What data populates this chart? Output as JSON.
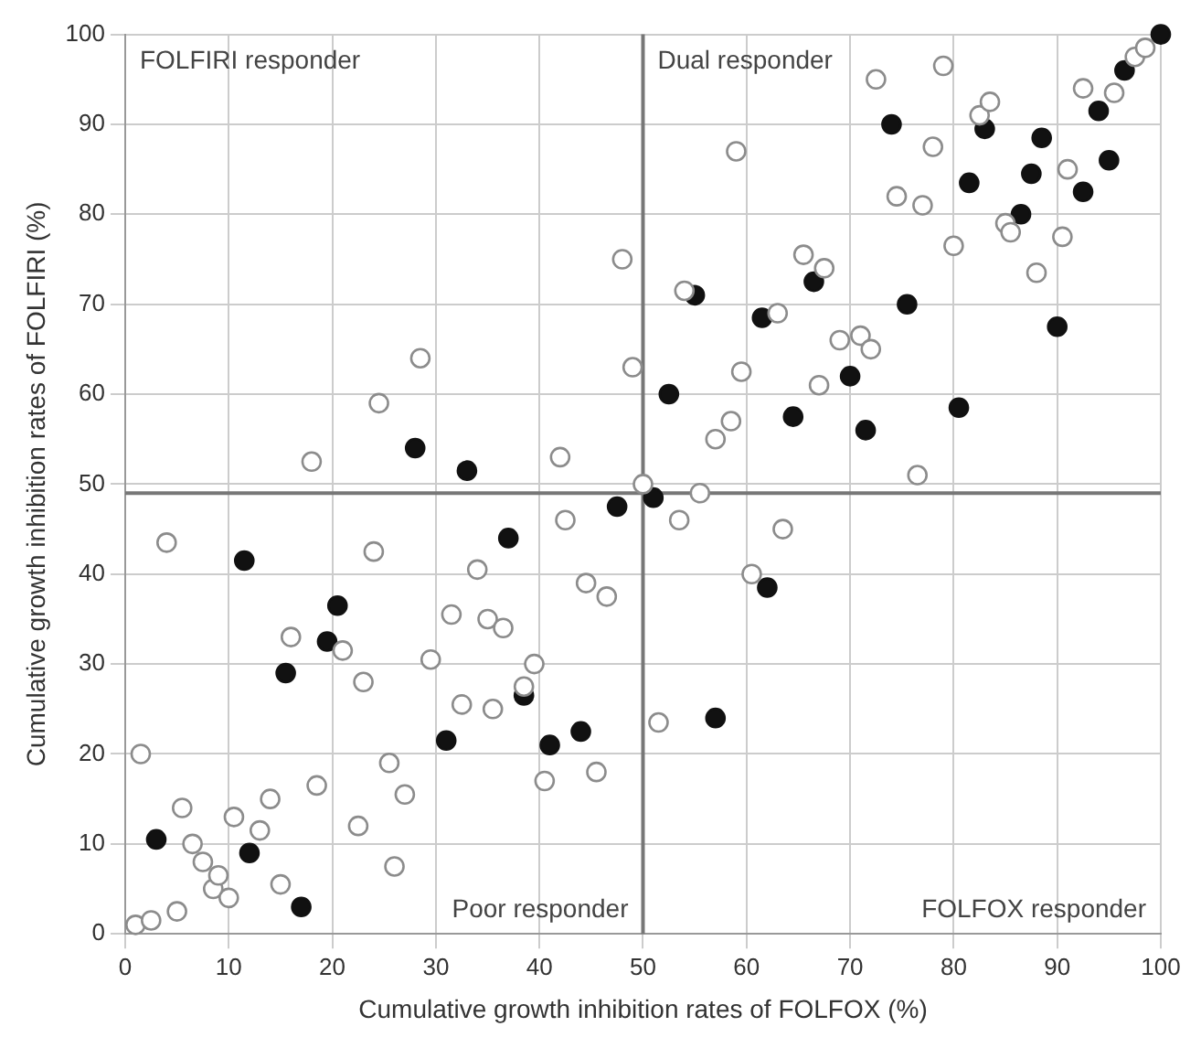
{
  "chart_data": {
    "type": "scatter",
    "xlabel": "Cumulative growth inhibition rates of FOLFOX (%)",
    "ylabel": "Cumulative growth inhibition rates of FOLFIRI (%)",
    "xlim": [
      0,
      100
    ],
    "ylim": [
      0,
      100
    ],
    "xticks": [
      0,
      10,
      20,
      30,
      40,
      50,
      60,
      70,
      80,
      90,
      100
    ],
    "yticks": [
      0,
      10,
      20,
      30,
      40,
      50,
      60,
      70,
      80,
      90,
      100
    ],
    "grid": true,
    "legend": false,
    "series": [
      {
        "color": "#8c8c8c",
        "x": [
          1,
          2.5,
          5,
          1.5,
          4,
          5.5,
          6.5,
          7.5,
          8.5,
          9,
          10,
          10.5,
          13,
          14,
          15,
          16,
          18.5,
          18,
          21,
          22.5,
          23,
          24,
          24.5,
          25.5,
          26,
          27,
          28.5,
          29.5,
          31.5,
          32.5,
          34,
          35,
          35.5,
          36.5,
          38.5,
          39.5,
          40.5,
          42.5,
          42,
          44.5,
          45.5,
          46.5,
          48,
          49,
          50,
          51.5,
          53.5,
          54,
          55.5,
          57,
          58.5,
          59,
          59.5,
          60.5,
          63,
          63.5,
          65.5,
          67,
          67.5,
          69,
          71,
          72,
          72.5,
          74.5,
          76.5,
          77,
          78,
          79,
          80,
          82.5,
          83.5,
          85,
          85.5,
          88,
          90.5,
          91,
          92.5,
          95.5,
          97.5,
          98.5
        ],
        "values": [
          1,
          1.5,
          2.5,
          20,
          43.5,
          14,
          10,
          8,
          5,
          6.5,
          4,
          13,
          11.5,
          15,
          5.5,
          33,
          16.5,
          52.5,
          31.5,
          12,
          28,
          42.5,
          59,
          19,
          7.5,
          15.5,
          64,
          30.5,
          35.5,
          25.5,
          40.5,
          35,
          25,
          34,
          27.5,
          30,
          17,
          46,
          53,
          39,
          18,
          37.5,
          75,
          63,
          50,
          23.5,
          46,
          71.5,
          49,
          55,
          57,
          87,
          62.5,
          40,
          69,
          45,
          75.5,
          61,
          74,
          66,
          66.5,
          65,
          95,
          82,
          51,
          81,
          87.5,
          96.5,
          76.5,
          91,
          92.5,
          79,
          78,
          73.5,
          77.5,
          85,
          94,
          93.5,
          97.5,
          98.5
        ]
      },
      {
        "color": "#111111",
        "x": [
          100,
          96.5,
          94,
          95,
          92.5,
          88.5,
          87.5,
          86.5,
          83,
          81.5,
          74,
          75.5,
          70,
          71.5,
          80.5,
          90,
          66.5,
          61.5,
          55,
          52.5,
          64.5,
          62,
          57,
          51,
          47.5,
          44,
          41,
          38.5,
          37,
          31,
          33,
          28,
          20.5,
          19.5,
          15.5,
          11.5,
          12,
          17,
          3
        ],
        "values": [
          100,
          96,
          91.5,
          86,
          82.5,
          88.5,
          84.5,
          80,
          89.5,
          83.5,
          90,
          70,
          62,
          56,
          58.5,
          67.5,
          72.5,
          68.5,
          71,
          60,
          57.5,
          38.5,
          24,
          48.5,
          47.5,
          22.5,
          21,
          26.5,
          44,
          21.5,
          51.5,
          54,
          36.5,
          32.5,
          29,
          41.5,
          9,
          3,
          10.5
        ]
      }
    ],
    "ref_lines": [
      {
        "axis": "y",
        "value": 49,
        "color": "#777777"
      },
      {
        "axis": "x",
        "value": 50,
        "color": "#777777"
      }
    ],
    "annotations": [
      "FOLFIRI responder",
      "Dual responder",
      "Poor responder",
      "FOLFOX responder"
    ]
  }
}
